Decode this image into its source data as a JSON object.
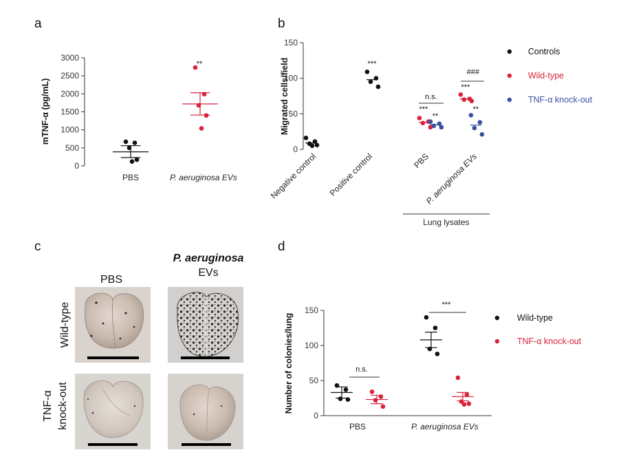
{
  "figure": {
    "panels": {
      "a": "a",
      "b": "b",
      "c": "c",
      "d": "d"
    }
  },
  "chart_data": [
    {
      "panel": "a",
      "type": "scatter",
      "ylabel": "mTNF-α (pg/mL)",
      "ylim": [
        0,
        3000
      ],
      "yticks": [
        0,
        500,
        1000,
        1500,
        2000,
        2500,
        3000
      ],
      "categories": [
        "PBS",
        "P. aeruginosa EVs"
      ],
      "series": [
        {
          "category": "PBS",
          "color": "#111111",
          "points": [
            670,
            640,
            500,
            170,
            120
          ],
          "mean": 390,
          "sem": [
            230,
            560
          ]
        },
        {
          "category": "P. aeruginosa EVs",
          "color": "#d9223b",
          "points": [
            2730,
            1990,
            1680,
            1400,
            1040
          ],
          "mean": 1720,
          "sem": [
            1410,
            2030
          ]
        }
      ],
      "annotations": [
        {
          "category": "P. aeruginosa EVs",
          "text": "**",
          "y": 2880
        }
      ]
    },
    {
      "panel": "b",
      "type": "scatter",
      "ylabel": "Migrated cells/field",
      "ylim": [
        0,
        150
      ],
      "yticks": [
        0,
        50,
        100,
        150
      ],
      "categories": [
        "Negative control",
        "Positive control",
        "PBS",
        "P. aeruginosa EVs"
      ],
      "group_label": "Lung lysates",
      "series": [
        {
          "name": "Controls",
          "color": "#111111",
          "groups": [
            {
              "category": "Negative control",
              "points": [
                16,
                11,
                8,
                6,
                5
              ],
              "mean": 9
            },
            {
              "category": "Positive control",
              "points": [
                109,
                100,
                95,
                88
              ],
              "mean": 98
            }
          ]
        },
        {
          "name": "Wild-type",
          "color": "#d9223b",
          "groups": [
            {
              "category": "PBS",
              "points": [
                44,
                39,
                37,
                31
              ],
              "mean": 38
            },
            {
              "category": "P. aeruginosa EVs",
              "points": [
                77,
                71,
                70,
                68
              ],
              "mean": 71
            }
          ]
        },
        {
          "name": "TNF-α knock-out",
          "color": "#3b4fa0",
          "groups": [
            {
              "category": "PBS",
              "points": [
                39,
                36,
                33,
                31
              ],
              "mean": 35
            },
            {
              "category": "P. aeruginosa EVs",
              "points": [
                48,
                38,
                30,
                21
              ],
              "mean": 34
            }
          ]
        }
      ],
      "annotations": [
        {
          "text": "***",
          "category": "Positive control",
          "y": 120
        },
        {
          "text": "***",
          "category": "PBS",
          "series": "Wild-type",
          "y": 55
        },
        {
          "text": "**",
          "category": "PBS",
          "series": "TNF-α knock-out",
          "y": 45
        },
        {
          "text": "n.s.",
          "category": "PBS",
          "y": 69
        },
        {
          "text": "***",
          "category": "P. aeruginosa EVs",
          "series": "Wild-type",
          "y": 87
        },
        {
          "text": "**",
          "category": "P. aeruginosa EVs",
          "series": "TNF-α knock-out",
          "y": 55
        },
        {
          "text": "###",
          "category": "P. aeruginosa EVs",
          "y": 106
        }
      ],
      "legend": "right"
    },
    {
      "panel": "d",
      "type": "scatter",
      "ylabel": "Number of colonies/lung",
      "ylim": [
        0,
        150
      ],
      "yticks": [
        0,
        50,
        100,
        150
      ],
      "categories": [
        "PBS",
        "P. aeruginosa EVs"
      ],
      "series": [
        {
          "name": "Wild-type",
          "color": "#111111",
          "groups": [
            {
              "category": "PBS",
              "points": [
                43,
                37,
                24,
                23
              ],
              "mean": 33,
              "sem": [
                25,
                41
              ]
            },
            {
              "category": "P. aeruginosa EVs",
              "points": [
                140,
                125,
                95,
                88
              ],
              "mean": 108,
              "sem": [
                97,
                119
              ]
            }
          ]
        },
        {
          "name": "TNF-α knock-out",
          "color": "#d9223b",
          "groups": [
            {
              "category": "PBS",
              "points": [
                34,
                27,
                22,
                13
              ],
              "mean": 23,
              "sem": [
                17,
                29
              ]
            },
            {
              "category": "P. aeruginosa EVs",
              "points": [
                54,
                30,
                20,
                17,
                16
              ],
              "mean": 27,
              "sem": [
                21,
                33
              ]
            }
          ]
        }
      ],
      "annotations": [
        {
          "text": "n.s.",
          "category": "PBS",
          "y": 54
        },
        {
          "text": "***",
          "category": "P. aeruginosa EVs",
          "y": 147
        }
      ],
      "legend": "right"
    }
  ],
  "panel_c": {
    "col_labels": [
      "PBS",
      "P. aeruginosa",
      "EVs"
    ],
    "row_labels": [
      "Wild-type",
      "TNF-α",
      "knock-out"
    ]
  }
}
